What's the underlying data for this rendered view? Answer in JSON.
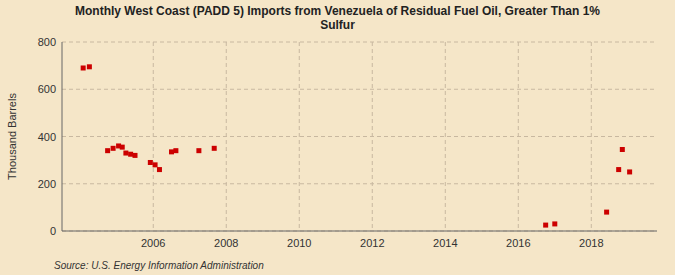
{
  "chart_data": {
    "type": "scatter",
    "title": "Monthly West Coast (PADD 5) Imports from Venezuela of Residual Fuel Oil, Greater Than 1%\nSulfur",
    "y_label": "Thousand Barrels",
    "annotations": [
      "Source: U.S. Energy Information Administration"
    ],
    "x": [
      2004.08,
      2004.25,
      2004.75,
      2004.9,
      2005.05,
      2005.15,
      2005.25,
      2005.38,
      2005.5,
      2005.92,
      2006.05,
      2006.17,
      2006.5,
      2006.62,
      2007.25,
      2007.67,
      2016.75,
      2017.0,
      2018.42,
      2018.75,
      2018.85,
      2019.05
    ],
    "values": [
      690,
      695,
      340,
      350,
      360,
      355,
      330,
      325,
      320,
      290,
      280,
      260,
      335,
      340,
      340,
      350,
      25,
      30,
      80,
      260,
      345,
      250
    ],
    "color": "#cc0000",
    "marker": "square",
    "xlim": [
      2003.5,
      2019.8
    ],
    "xticks": [
      2006,
      2008,
      2010,
      2012,
      2014,
      2016,
      2018
    ],
    "ylim": [
      0,
      800
    ],
    "yticks": [
      0,
      200,
      400,
      600,
      800
    ],
    "grid": true
  }
}
